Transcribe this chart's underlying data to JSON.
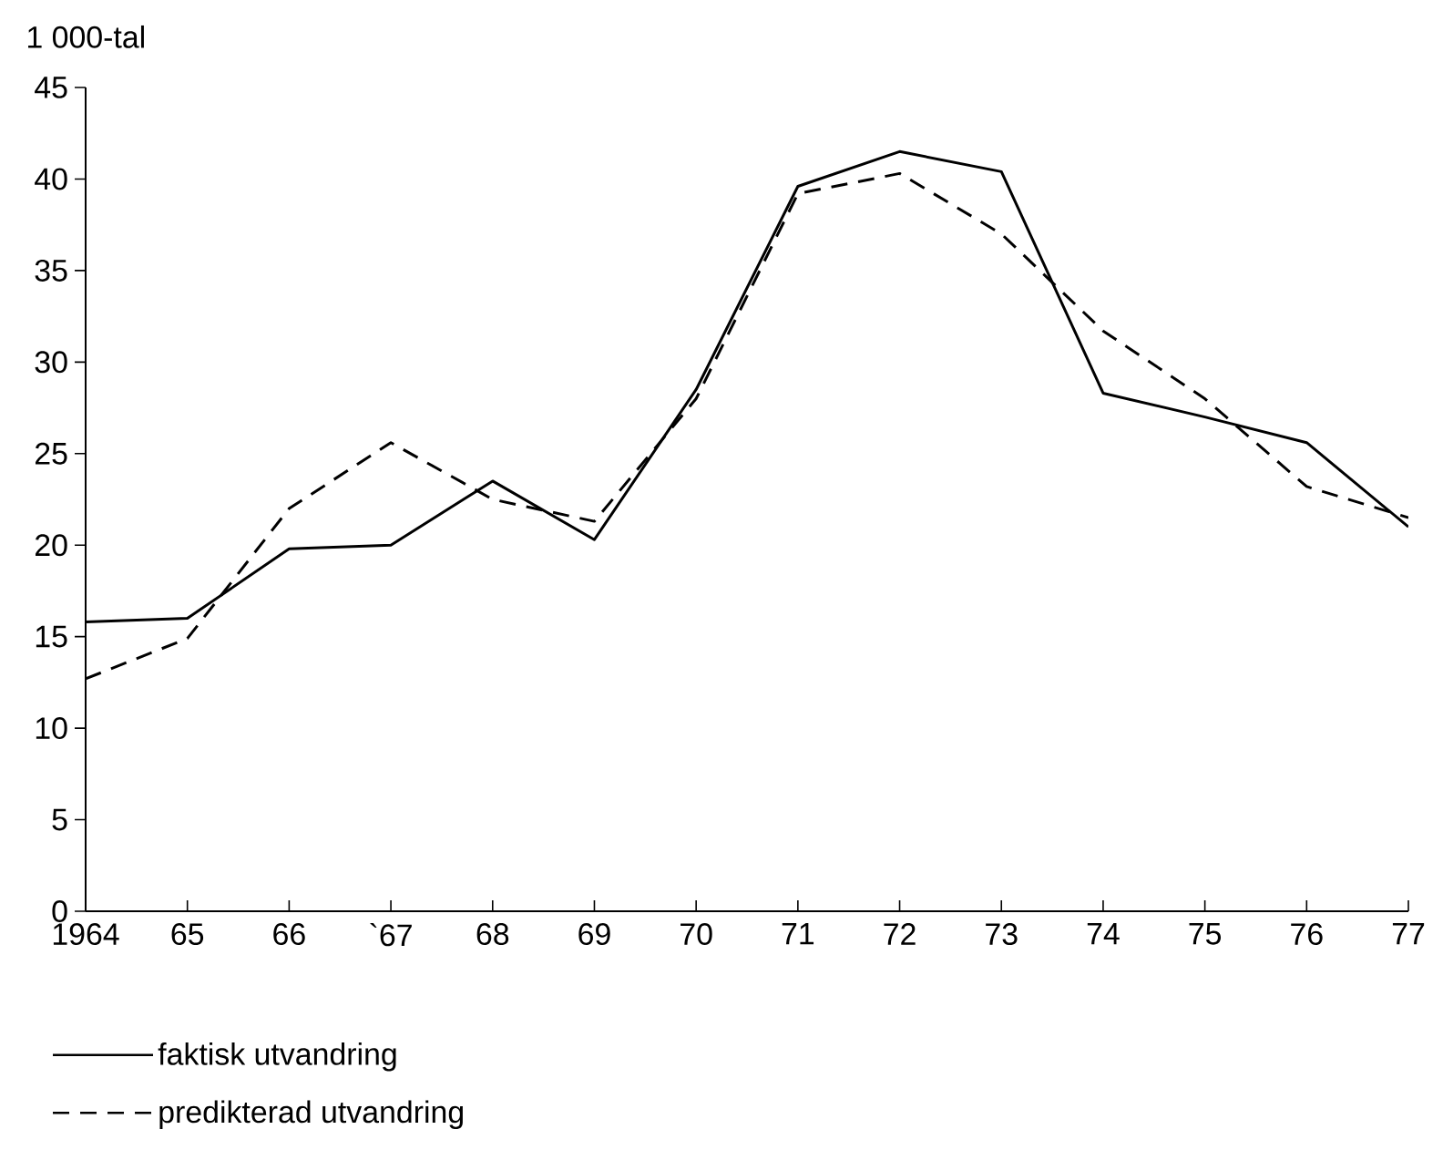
{
  "chart_data": {
    "type": "line",
    "ylabel": "1 000-tal",
    "categories": [
      "1964",
      "65",
      "66",
      "`67",
      "68",
      "69",
      "70",
      "71",
      "72",
      "73",
      "74",
      "75",
      "76",
      "77"
    ],
    "series": [
      {
        "name": "faktisk utvandring",
        "color": "#000000",
        "line_style": "solid",
        "values": [
          15.8,
          16.0,
          19.8,
          20.0,
          23.5,
          20.3,
          28.5,
          39.6,
          41.5,
          40.4,
          28.3,
          27.0,
          25.6,
          21.0
        ]
      },
      {
        "name": "predikterad utvandring",
        "color": "#000000",
        "line_style": "dashed",
        "values": [
          12.7,
          14.9,
          22.0,
          25.6,
          22.5,
          21.3,
          28.0,
          39.2,
          40.3,
          37.0,
          31.7,
          28.0,
          23.2,
          21.5
        ]
      }
    ],
    "ylim": [
      0,
      45
    ],
    "yticks": [
      0,
      5,
      10,
      15,
      20,
      25,
      30,
      35,
      40,
      45
    ],
    "grid": false,
    "legend": "bottom left"
  }
}
